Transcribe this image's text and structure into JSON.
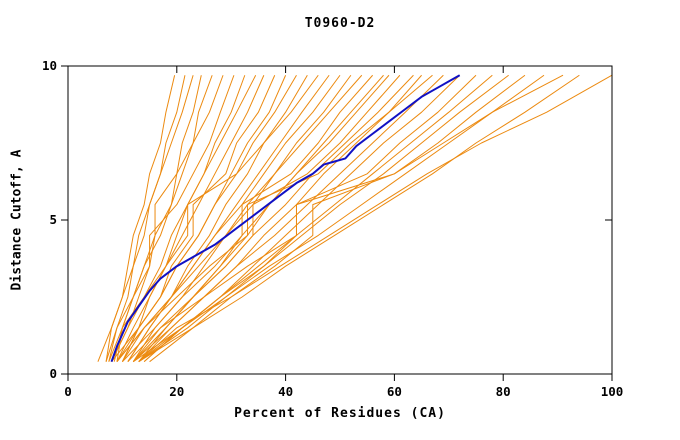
{
  "title": "T0960-D2",
  "chart_data": {
    "type": "line",
    "title": "T0960-D2",
    "xlabel": "Percent of Residues (CA)",
    "ylabel": "Distance Cutoff, A",
    "xlim": [
      0,
      100
    ],
    "ylim": [
      0,
      10
    ],
    "x_ticks": [
      0,
      20,
      40,
      60,
      80,
      100
    ],
    "y_ticks": [
      0,
      5,
      10
    ],
    "grid": false,
    "legend": "none",
    "colors": {
      "model": "#ec8a10",
      "highlight": "#1111c4",
      "axis": "#000000",
      "background": "#ffffff"
    },
    "orange_models": {
      "name": "server-models",
      "y_levels": [
        0.4,
        1.5,
        2.5,
        3.5,
        4.5,
        5.5,
        6.5,
        7.5,
        8.5,
        9.7
      ],
      "curves": [
        [
          7,
          8,
          10,
          11,
          12,
          14,
          15,
          17,
          18,
          19.6
        ],
        [
          7.5,
          9,
          11,
          12,
          14,
          15,
          17,
          18,
          20,
          21.5
        ],
        [
          8,
          11,
          13,
          15,
          16,
          16,
          20,
          21,
          23,
          24.5
        ],
        [
          9,
          10,
          12,
          14,
          17,
          19,
          20,
          23,
          24,
          26.5
        ],
        [
          7,
          9,
          12,
          14,
          16,
          19,
          21,
          23,
          26,
          28.5
        ],
        [
          8.5,
          10,
          12,
          15,
          15,
          20,
          23,
          26,
          28,
          30.5
        ],
        [
          10,
          13,
          15,
          18,
          20,
          22,
          25,
          27,
          30,
          32.5
        ],
        [
          8,
          11,
          14,
          17,
          19,
          22,
          25,
          28,
          31,
          34.5
        ],
        [
          9,
          12,
          15,
          18,
          21,
          24,
          27,
          30,
          33,
          36
        ],
        [
          10,
          13,
          17,
          19,
          23,
          23,
          29,
          31,
          35,
          38
        ],
        [
          8,
          13,
          17,
          20,
          24,
          27,
          30,
          33,
          37,
          40
        ],
        [
          9,
          13,
          17,
          20,
          24,
          27,
          31,
          34,
          38,
          42
        ],
        [
          11,
          15,
          19,
          22,
          26,
          29,
          33,
          36,
          40,
          44
        ],
        [
          7.5,
          10,
          14,
          18,
          22,
          22,
          31,
          36,
          41,
          46
        ],
        [
          11,
          15,
          19,
          23,
          27,
          31,
          35,
          39,
          43,
          48
        ],
        [
          10,
          14,
          19,
          23,
          27,
          32,
          36,
          40,
          45,
          50
        ],
        [
          12,
          16,
          21,
          25,
          29,
          34,
          38,
          42,
          47,
          52
        ],
        [
          9,
          14,
          19,
          24,
          29,
          33,
          38,
          43,
          48,
          54
        ],
        [
          12,
          18,
          23,
          28,
          32,
          32,
          41,
          46,
          50,
          56
        ],
        [
          13,
          18,
          23,
          28,
          33,
          37,
          42,
          47,
          52,
          58
        ],
        [
          10,
          16,
          21,
          27,
          32,
          37,
          42,
          48,
          53,
          59
        ],
        [
          12,
          18,
          23,
          29,
          34,
          34,
          44,
          50,
          55,
          61
        ],
        [
          11,
          17,
          23,
          29,
          34,
          40,
          45,
          51,
          57,
          63.5
        ],
        [
          13,
          19,
          25,
          31,
          36,
          42,
          47,
          53,
          59,
          65
        ],
        [
          9,
          14,
          20,
          26,
          33,
          33,
          46,
          52,
          59,
          67
        ],
        [
          12,
          19,
          25,
          31,
          38,
          44,
          50,
          56,
          62,
          69
        ],
        [
          14,
          21,
          28,
          34,
          40,
          46,
          52,
          58,
          65,
          72
        ],
        [
          13,
          22,
          29,
          36,
          42,
          42,
          55,
          61,
          68,
          75
        ],
        [
          14,
          21,
          28,
          35,
          42,
          49,
          56,
          63,
          70,
          78
        ],
        [
          13,
          21,
          28,
          36,
          43,
          50,
          58,
          65,
          72,
          81
        ],
        [
          15,
          23,
          30,
          38,
          45,
          45,
          60,
          68,
          75,
          84
        ],
        [
          12,
          21,
          29,
          37,
          46,
          54,
          62,
          70,
          78,
          87.5
        ],
        [
          12,
          17,
          25,
          33,
          42,
          42,
          60,
          69,
          78,
          91
        ],
        [
          13,
          23,
          32,
          40,
          49,
          58,
          67,
          75,
          84,
          94
        ],
        [
          13,
          20,
          30,
          39,
          48,
          57,
          66,
          76,
          88,
          100
        ],
        [
          5.5,
          8,
          10,
          12,
          13,
          15,
          17,
          19,
          21,
          23
        ]
      ]
    },
    "highlight_model": {
      "name": "highlighted-model",
      "points": [
        [
          8,
          0.4
        ],
        [
          9,
          0.9
        ],
        [
          10,
          1.3
        ],
        [
          11,
          1.7
        ],
        [
          13,
          2.2
        ],
        [
          15,
          2.7
        ],
        [
          17,
          3.1
        ],
        [
          20,
          3.5
        ],
        [
          24,
          3.9
        ],
        [
          27,
          4.2
        ],
        [
          30,
          4.6
        ],
        [
          33,
          5.0
        ],
        [
          36,
          5.4
        ],
        [
          39,
          5.8
        ],
        [
          42,
          6.2
        ],
        [
          45,
          6.5
        ],
        [
          47,
          6.8
        ],
        [
          49,
          6.9
        ],
        [
          51,
          7.0
        ],
        [
          53,
          7.4
        ],
        [
          56,
          7.8
        ],
        [
          59,
          8.2
        ],
        [
          62,
          8.6
        ],
        [
          65,
          9.0
        ],
        [
          68,
          9.3
        ],
        [
          70,
          9.5
        ],
        [
          72,
          9.7
        ]
      ]
    }
  }
}
